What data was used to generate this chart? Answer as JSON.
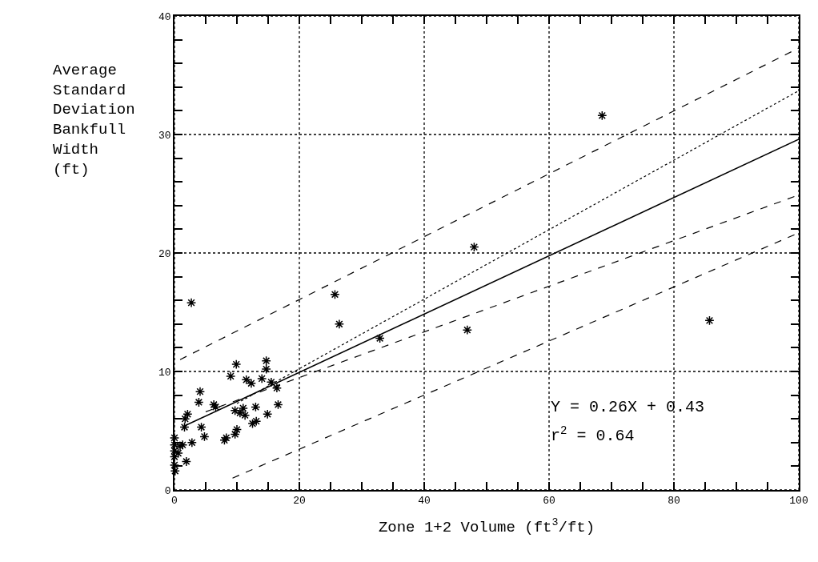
{
  "chart_data": {
    "type": "scatter",
    "xlabel": "Zone 1+2 Volume (ft$^{3}$/ft)",
    "ylabel": "Average\nStandard\nDeviation\nBankfull\nWidth\n(ft)",
    "annotations": [
      "Y = 0.26X + 0.43",
      "r$^{2}$ = 0.64"
    ],
    "series": [
      {
        "color": "#000000",
        "marker": "cross",
        "x": [
          68.5,
          48.0,
          25.7,
          26.4,
          32.9,
          46.9,
          85.7,
          2.7,
          9.9,
          9.0,
          14.7,
          14.7,
          14.0,
          11.5,
          12.3,
          15.5,
          16.4,
          16.6,
          14.9,
          13.0,
          12.5,
          13.1,
          11.0,
          10.5,
          9.7,
          11.3,
          10.0,
          9.7,
          8.3,
          8.0,
          6.3,
          6.6,
          4.1,
          3.9,
          2.1,
          1.7,
          1.6,
          4.3,
          4.8,
          2.8,
          1.9,
          0.9,
          0.0,
          0.0,
          0.0,
          0.0,
          0.1,
          0.6,
          1.3,
          0.0
        ],
        "values": [
          31.6,
          20.5,
          16.5,
          14.0,
          12.8,
          13.5,
          14.3,
          15.8,
          10.6,
          9.6,
          10.9,
          10.2,
          9.4,
          9.3,
          9.0,
          9.1,
          8.6,
          7.2,
          6.4,
          7.0,
          5.6,
          5.8,
          6.9,
          6.5,
          6.7,
          6.3,
          5.1,
          4.7,
          4.4,
          4.2,
          7.2,
          7.0,
          8.3,
          7.4,
          6.4,
          6.0,
          5.3,
          5.3,
          4.5,
          4.0,
          2.4,
          3.7,
          4.4,
          3.3,
          2.8,
          2.1,
          1.6,
          3.1,
          3.8,
          3.8
        ]
      },
      {
        "type": "line",
        "color": "#000000",
        "line_style": "solid",
        "x": [
          1.6,
          100
        ],
        "values": [
          5.4,
          29.6
        ]
      },
      {
        "type": "line",
        "color": "#000000",
        "line_style": "dashed",
        "x": [
          0.9,
          100
        ],
        "values": [
          11.0,
          37.3
        ]
      },
      {
        "type": "line",
        "color": "#000000",
        "line_style": "dotted",
        "x": [
          10,
          100
        ],
        "values": [
          7.3,
          33.7
        ]
      },
      {
        "type": "line",
        "color": "#000000",
        "line_style": "dashed",
        "x": [
          5,
          100
        ],
        "values": [
          6.6,
          24.9
        ]
      },
      {
        "type": "line",
        "color": "#000000",
        "line_style": "dashed",
        "x": [
          9.3,
          100
        ],
        "values": [
          1.0,
          21.7
        ]
      }
    ],
    "xlim": [
      0,
      100
    ],
    "ylim": [
      0,
      40
    ],
    "xticks": [
      0,
      {
        "value": 5,
        "label": null
      },
      {
        "value": 10,
        "label": null
      },
      {
        "value": 15,
        "label": null
      },
      20,
      {
        "value": 25,
        "label": null
      },
      {
        "value": 30,
        "label": null
      },
      {
        "value": 35,
        "label": null
      },
      40,
      {
        "value": 45,
        "label": null
      },
      {
        "value": 50,
        "label": null
      },
      {
        "value": 55,
        "label": null
      },
      60,
      {
        "value": 65,
        "label": null
      },
      {
        "value": 70,
        "label": null
      },
      {
        "value": 75,
        "label": null
      },
      80,
      {
        "value": 85,
        "label": null
      },
      {
        "value": 90,
        "label": null
      },
      {
        "value": 95,
        "label": null
      },
      100
    ],
    "yticks": [
      0,
      {
        "value": 2,
        "label": null
      },
      {
        "value": 4,
        "label": null
      },
      {
        "value": 6,
        "label": null
      },
      {
        "value": 8,
        "label": null
      },
      10,
      {
        "value": 12,
        "label": null
      },
      {
        "value": 14,
        "label": null
      },
      {
        "value": 16,
        "label": null
      },
      {
        "value": 18,
        "label": null
      },
      20,
      {
        "value": 22,
        "label": null
      },
      {
        "value": 24,
        "label": null
      },
      {
        "value": 26,
        "label": null
      },
      {
        "value": 28,
        "label": null
      },
      30,
      {
        "value": 32,
        "label": null
      },
      {
        "value": 34,
        "label": null
      },
      {
        "value": 36,
        "label": null
      },
      {
        "value": 38,
        "label": null
      },
      40
    ],
    "grid": true
  }
}
